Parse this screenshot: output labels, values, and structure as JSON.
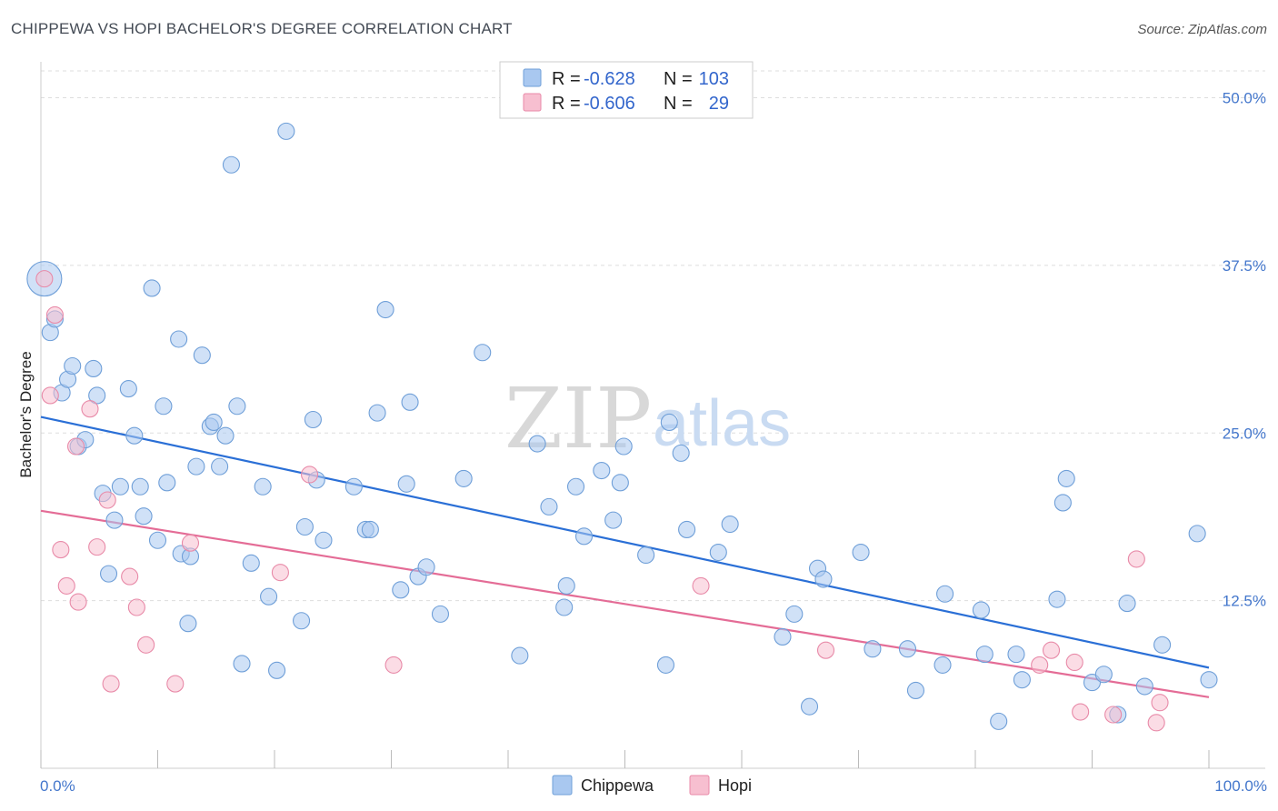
{
  "title": "CHIPPEWA VS HOPI BACHELOR'S DEGREE CORRELATION CHART",
  "source": "Source: ZipAtlas.com",
  "watermark": {
    "zip": "ZIP",
    "atlas": "atlas"
  },
  "colors": {
    "chippewa_fill": "#a9c8f0",
    "chippewa_stroke": "#6f9fd8",
    "chippewa_line": "#2a6fd6",
    "hopi_fill": "#f7bfd0",
    "hopi_stroke": "#e88aa8",
    "hopi_line": "#e46c96",
    "tick": "#4477cc",
    "grid": "#dddddd"
  },
  "legend": {
    "rows": [
      {
        "r_label": "R =",
        "r_value": "-0.628",
        "n_label": "N =",
        "n_value": "103"
      },
      {
        "r_label": "R =",
        "r_value": "-0.606",
        "n_label": "N =",
        "n_value": "29"
      }
    ]
  },
  "chart_data": {
    "type": "scatter",
    "xlabel": "",
    "ylabel": "Bachelor's Degree",
    "xlim": [
      0,
      100
    ],
    "ylim": [
      0,
      52
    ],
    "x_tick_labels": [
      "0.0%",
      "100.0%"
    ],
    "y_ticks": [
      12.5,
      25.0,
      37.5,
      50.0
    ],
    "y_tick_labels": [
      "12.5%",
      "25.0%",
      "37.5%",
      "50.0%"
    ],
    "series": [
      {
        "name": "Chippewa",
        "trend": {
          "x": [
            0,
            100
          ],
          "y": [
            26.2,
            7.5
          ]
        },
        "points": [
          {
            "x": 0.3,
            "y": 36.5,
            "big": true
          },
          {
            "x": 0.8,
            "y": 32.5
          },
          {
            "x": 1.2,
            "y": 33.5
          },
          {
            "x": 1.8,
            "y": 28.0
          },
          {
            "x": 2.3,
            "y": 29.0
          },
          {
            "x": 2.7,
            "y": 30.0
          },
          {
            "x": 3.2,
            "y": 24.0
          },
          {
            "x": 3.8,
            "y": 24.5
          },
          {
            "x": 4.5,
            "y": 29.8
          },
          {
            "x": 4.8,
            "y": 27.8
          },
          {
            "x": 5.3,
            "y": 20.5
          },
          {
            "x": 5.8,
            "y": 14.5
          },
          {
            "x": 6.3,
            "y": 18.5
          },
          {
            "x": 6.8,
            "y": 21.0
          },
          {
            "x": 7.5,
            "y": 28.3
          },
          {
            "x": 8.0,
            "y": 24.8
          },
          {
            "x": 8.5,
            "y": 21.0
          },
          {
            "x": 8.8,
            "y": 18.8
          },
          {
            "x": 9.5,
            "y": 35.8
          },
          {
            "x": 10.0,
            "y": 17.0
          },
          {
            "x": 10.5,
            "y": 27.0
          },
          {
            "x": 10.8,
            "y": 21.3
          },
          {
            "x": 11.8,
            "y": 32.0
          },
          {
            "x": 12.0,
            "y": 16.0
          },
          {
            "x": 12.6,
            "y": 10.8
          },
          {
            "x": 12.8,
            "y": 15.8
          },
          {
            "x": 13.3,
            "y": 22.5
          },
          {
            "x": 13.8,
            "y": 30.8
          },
          {
            "x": 14.5,
            "y": 25.5
          },
          {
            "x": 14.8,
            "y": 25.8
          },
          {
            "x": 15.3,
            "y": 22.5
          },
          {
            "x": 15.8,
            "y": 24.8
          },
          {
            "x": 16.3,
            "y": 45.0
          },
          {
            "x": 16.8,
            "y": 27.0
          },
          {
            "x": 17.2,
            "y": 7.8
          },
          {
            "x": 18.0,
            "y": 15.3
          },
          {
            "x": 19.0,
            "y": 21.0
          },
          {
            "x": 19.5,
            "y": 12.8
          },
          {
            "x": 20.2,
            "y": 7.3
          },
          {
            "x": 21.0,
            "y": 47.5
          },
          {
            "x": 22.3,
            "y": 11.0
          },
          {
            "x": 22.6,
            "y": 18.0
          },
          {
            "x": 23.3,
            "y": 26.0
          },
          {
            "x": 23.6,
            "y": 21.5
          },
          {
            "x": 24.2,
            "y": 17.0
          },
          {
            "x": 26.8,
            "y": 21.0
          },
          {
            "x": 27.8,
            "y": 17.8
          },
          {
            "x": 28.2,
            "y": 17.8
          },
          {
            "x": 28.8,
            "y": 26.5
          },
          {
            "x": 29.5,
            "y": 34.2
          },
          {
            "x": 30.8,
            "y": 13.3
          },
          {
            "x": 31.3,
            "y": 21.2
          },
          {
            "x": 31.6,
            "y": 27.3
          },
          {
            "x": 32.3,
            "y": 14.3
          },
          {
            "x": 33.0,
            "y": 15.0
          },
          {
            "x": 34.2,
            "y": 11.5
          },
          {
            "x": 36.2,
            "y": 21.6
          },
          {
            "x": 37.8,
            "y": 31.0
          },
          {
            "x": 41.0,
            "y": 8.4
          },
          {
            "x": 42.5,
            "y": 24.2
          },
          {
            "x": 43.5,
            "y": 19.5
          },
          {
            "x": 44.8,
            "y": 12.0
          },
          {
            "x": 45.0,
            "y": 13.6
          },
          {
            "x": 45.8,
            "y": 21.0
          },
          {
            "x": 46.5,
            "y": 17.3
          },
          {
            "x": 48.0,
            "y": 22.2
          },
          {
            "x": 49.0,
            "y": 18.5
          },
          {
            "x": 49.6,
            "y": 21.3
          },
          {
            "x": 49.9,
            "y": 24.0
          },
          {
            "x": 51.8,
            "y": 15.9
          },
          {
            "x": 53.5,
            "y": 7.7
          },
          {
            "x": 53.8,
            "y": 25.8
          },
          {
            "x": 54.8,
            "y": 23.5
          },
          {
            "x": 55.3,
            "y": 17.8
          },
          {
            "x": 58.0,
            "y": 16.1
          },
          {
            "x": 59.0,
            "y": 18.2
          },
          {
            "x": 63.5,
            "y": 9.8
          },
          {
            "x": 64.5,
            "y": 11.5
          },
          {
            "x": 65.8,
            "y": 4.6
          },
          {
            "x": 66.5,
            "y": 14.9
          },
          {
            "x": 67.0,
            "y": 14.1
          },
          {
            "x": 70.2,
            "y": 16.1
          },
          {
            "x": 71.2,
            "y": 8.9
          },
          {
            "x": 74.2,
            "y": 8.9
          },
          {
            "x": 74.9,
            "y": 5.8
          },
          {
            "x": 77.2,
            "y": 7.7
          },
          {
            "x": 77.4,
            "y": 13.0
          },
          {
            "x": 80.5,
            "y": 11.8
          },
          {
            "x": 80.8,
            "y": 8.5
          },
          {
            "x": 82.0,
            "y": 3.5
          },
          {
            "x": 83.5,
            "y": 8.5
          },
          {
            "x": 84.0,
            "y": 6.6
          },
          {
            "x": 87.0,
            "y": 12.6
          },
          {
            "x": 87.5,
            "y": 19.8
          },
          {
            "x": 87.8,
            "y": 21.6
          },
          {
            "x": 90.0,
            "y": 6.4
          },
          {
            "x": 91.0,
            "y": 7.0
          },
          {
            "x": 92.2,
            "y": 4.0
          },
          {
            "x": 93.0,
            "y": 12.3
          },
          {
            "x": 94.5,
            "y": 6.1
          },
          {
            "x": 96.0,
            "y": 9.2
          },
          {
            "x": 99.0,
            "y": 17.5
          },
          {
            "x": 100.0,
            "y": 6.6
          }
        ]
      },
      {
        "name": "Hopi",
        "trend": {
          "x": [
            0,
            100
          ],
          "y": [
            19.2,
            5.3
          ]
        },
        "points": [
          {
            "x": 0.3,
            "y": 36.5
          },
          {
            "x": 0.8,
            "y": 27.8
          },
          {
            "x": 1.2,
            "y": 33.8
          },
          {
            "x": 1.7,
            "y": 16.3
          },
          {
            "x": 2.2,
            "y": 13.6
          },
          {
            "x": 3.0,
            "y": 24.0
          },
          {
            "x": 3.2,
            "y": 12.4
          },
          {
            "x": 4.2,
            "y": 26.8
          },
          {
            "x": 4.8,
            "y": 16.5
          },
          {
            "x": 5.7,
            "y": 20.0
          },
          {
            "x": 6.0,
            "y": 6.3
          },
          {
            "x": 7.6,
            "y": 14.3
          },
          {
            "x": 8.2,
            "y": 12.0
          },
          {
            "x": 9.0,
            "y": 9.2
          },
          {
            "x": 11.5,
            "y": 6.3
          },
          {
            "x": 12.8,
            "y": 16.8
          },
          {
            "x": 20.5,
            "y": 14.6
          },
          {
            "x": 23.0,
            "y": 21.9
          },
          {
            "x": 30.2,
            "y": 7.7
          },
          {
            "x": 56.5,
            "y": 13.6
          },
          {
            "x": 67.2,
            "y": 8.8
          },
          {
            "x": 85.5,
            "y": 7.7
          },
          {
            "x": 86.5,
            "y": 8.8
          },
          {
            "x": 88.5,
            "y": 7.9
          },
          {
            "x": 89.0,
            "y": 4.2
          },
          {
            "x": 91.8,
            "y": 4.0
          },
          {
            "x": 93.8,
            "y": 15.6
          },
          {
            "x": 95.5,
            "y": 3.4
          },
          {
            "x": 95.8,
            "y": 4.9
          }
        ]
      }
    ],
    "legend_placement": "top-center"
  }
}
